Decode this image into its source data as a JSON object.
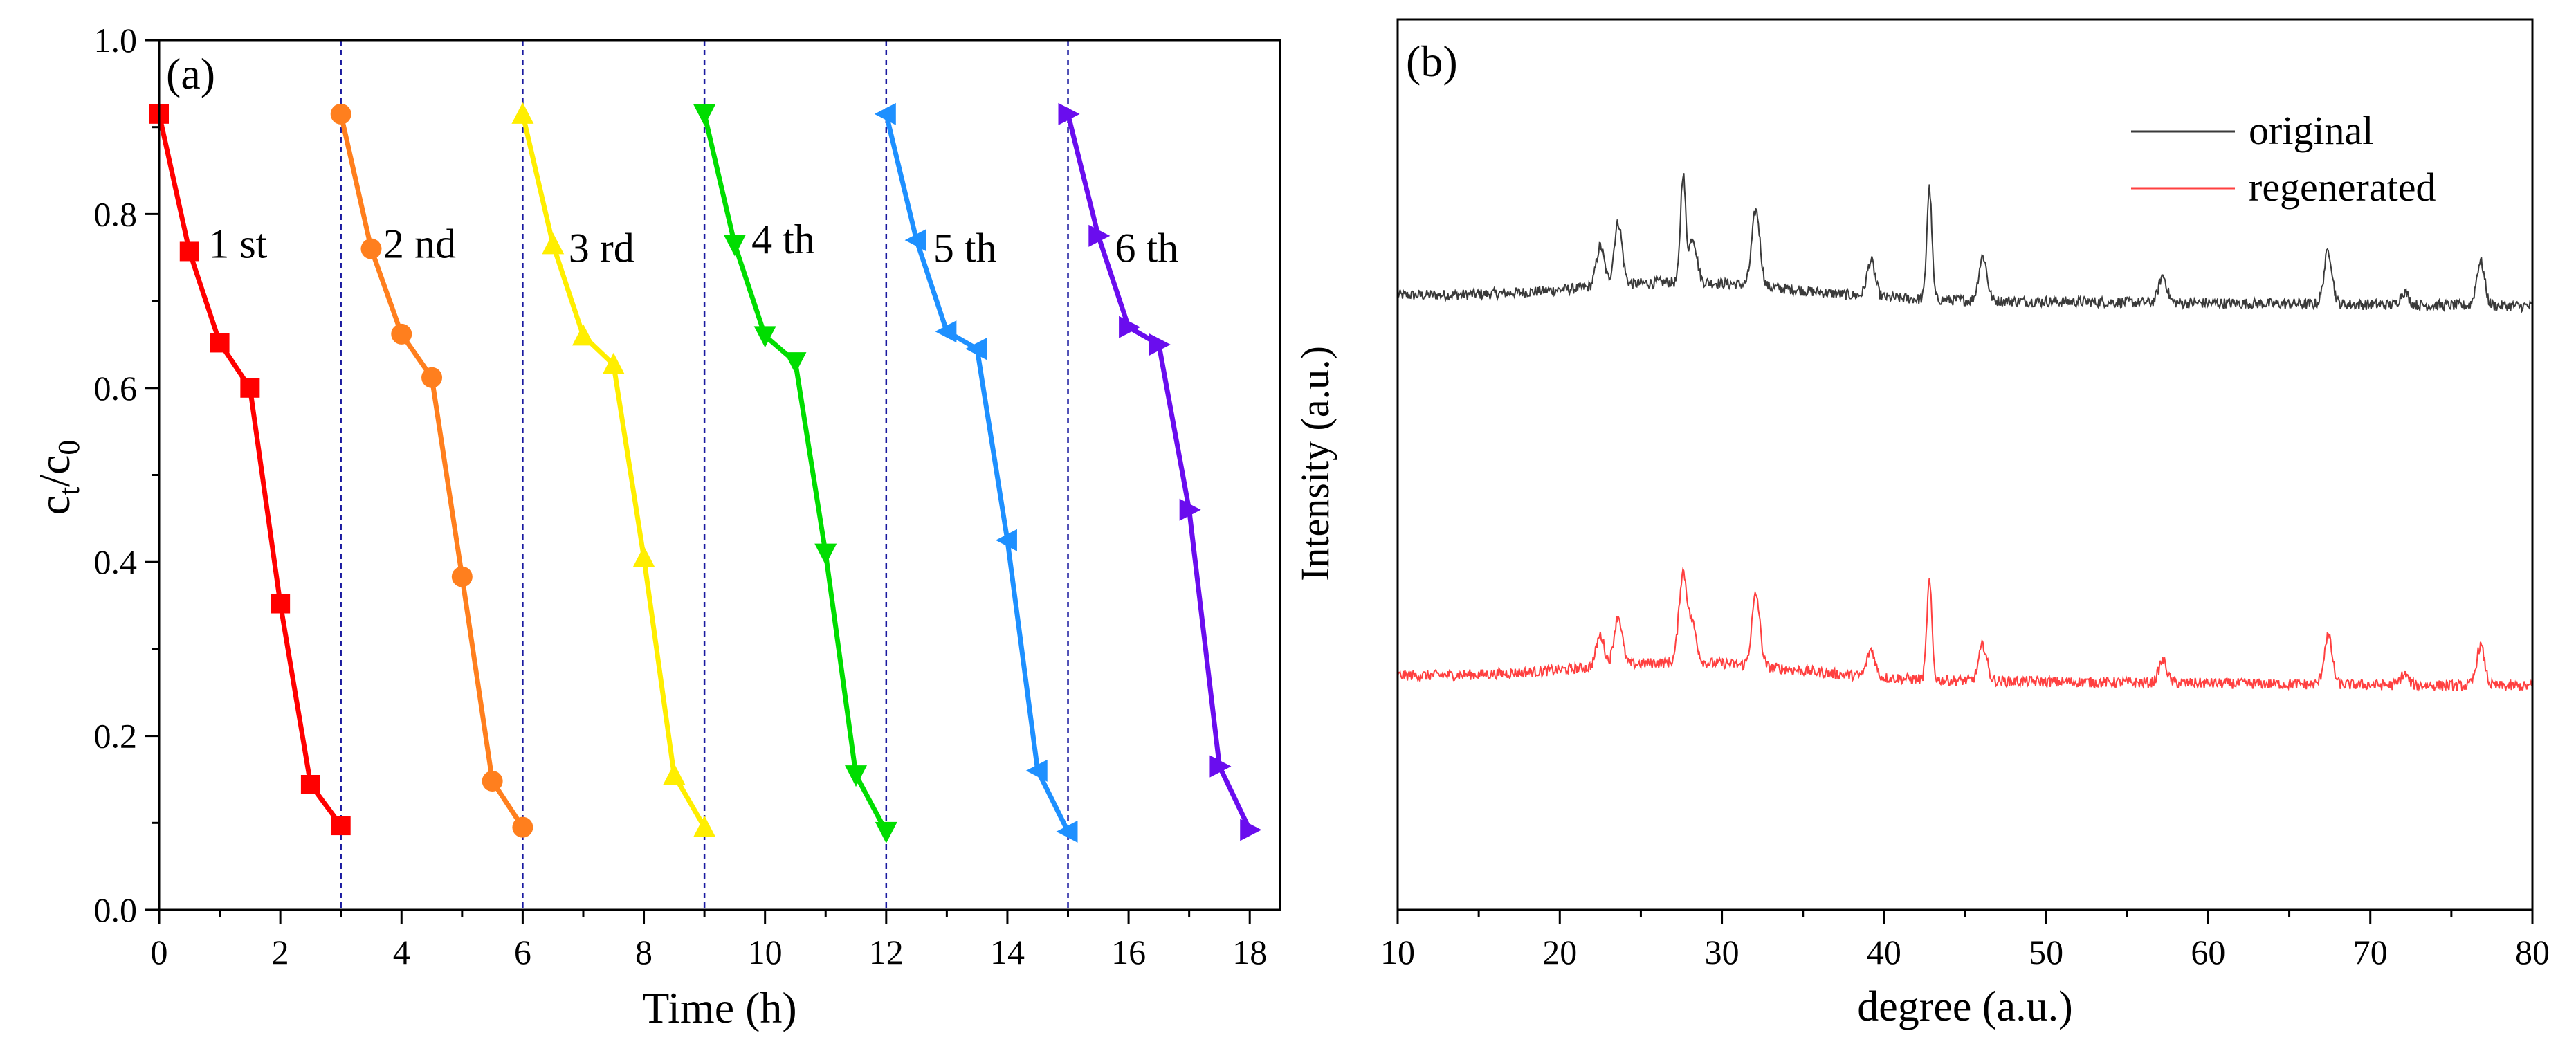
{
  "chart_data": [
    {
      "panel": "(a)",
      "type": "line",
      "xlabel": "Time (h)",
      "ylabel_main": "c",
      "ylabel_sub_t": "t",
      "ylabel_sep": "/c",
      "ylabel_sub_0": "0",
      "xlim": [
        0,
        18.5
      ],
      "ylim": [
        0,
        1.0
      ],
      "xticks": [
        "0",
        "2",
        "4",
        "6",
        "8",
        "10",
        "12",
        "14",
        "16",
        "18"
      ],
      "yticks": [
        "0.0",
        "0.2",
        "0.4",
        "0.6",
        "0.8",
        "1.0"
      ],
      "cycle_dividers": [
        3,
        6,
        9,
        12,
        15
      ],
      "series": [
        {
          "name": "1 st",
          "color": "#ff0000",
          "marker": "square",
          "x": [
            0,
            0.5,
            1,
            1.5,
            2,
            2.5,
            3
          ],
          "y": [
            0.915,
            0.757,
            0.652,
            0.6,
            0.352,
            0.144,
            0.097
          ],
          "label_pos": [
            1.3,
            0.75
          ]
        },
        {
          "name": "2 nd",
          "color": "#ff7f1e",
          "marker": "circle",
          "x": [
            3,
            3.5,
            4,
            4.5,
            5,
            5.5,
            6
          ],
          "y": [
            0.915,
            0.76,
            0.662,
            0.612,
            0.383,
            0.148,
            0.095
          ],
          "label_pos": [
            4.3,
            0.75
          ]
        },
        {
          "name": "3 rd",
          "color": "#ffee00",
          "marker": "triangle-up",
          "x": [
            6,
            6.5,
            7,
            7.5,
            8,
            8.5,
            9
          ],
          "y": [
            0.915,
            0.765,
            0.66,
            0.627,
            0.405,
            0.155,
            0.095
          ],
          "label_pos": [
            7.3,
            0.745
          ]
        },
        {
          "name": "4 th",
          "color": "#00dd00",
          "marker": "triangle-down",
          "x": [
            9,
            9.5,
            10,
            10.5,
            11,
            11.5,
            12
          ],
          "y": [
            0.915,
            0.765,
            0.66,
            0.63,
            0.41,
            0.155,
            0.09
          ],
          "label_pos": [
            10.3,
            0.755
          ]
        },
        {
          "name": "5 th",
          "color": "#1e90ff",
          "marker": "triangle-left",
          "x": [
            12,
            12.5,
            13,
            13.5,
            14,
            14.5,
            15
          ],
          "y": [
            0.915,
            0.77,
            0.665,
            0.645,
            0.425,
            0.16,
            0.09
          ],
          "label_pos": [
            13.3,
            0.745
          ]
        },
        {
          "name": "6 th",
          "color": "#6a0dee",
          "marker": "triangle-right",
          "x": [
            15,
            15.5,
            16,
            16.5,
            17,
            17.5,
            18
          ],
          "y": [
            0.915,
            0.775,
            0.67,
            0.65,
            0.46,
            0.165,
            0.092
          ],
          "label_pos": [
            16.3,
            0.745
          ]
        }
      ]
    },
    {
      "panel": "(b)",
      "type": "line",
      "xlabel": "degree (a.u.)",
      "ylabel": "Intensity (a.u.)",
      "xlim": [
        10,
        80
      ],
      "ylim": [
        0,
        1.0
      ],
      "yticks_shown": false,
      "xticks": [
        "10",
        "20",
        "30",
        "40",
        "50",
        "60",
        "70",
        "80"
      ],
      "series": [
        {
          "name": "original",
          "color": "#3a3a3a",
          "baseline": 0.69,
          "peaks": [
            [
              22.5,
              0.045
            ],
            [
              23.6,
              0.07
            ],
            [
              27.6,
              0.12
            ],
            [
              28.2,
              0.05
            ],
            [
              32.1,
              0.085
            ],
            [
              39.2,
              0.04
            ],
            [
              42.8,
              0.125
            ],
            [
              46.1,
              0.05
            ],
            [
              57.2,
              0.03
            ],
            [
              67.4,
              0.06
            ],
            [
              72.1,
              0.015
            ],
            [
              76.8,
              0.05
            ]
          ]
        },
        {
          "name": "regenerated",
          "color": "#ff4040",
          "baseline": 0.263,
          "peaks": [
            [
              22.5,
              0.035
            ],
            [
              23.6,
              0.055
            ],
            [
              27.6,
              0.1
            ],
            [
              28.2,
              0.04
            ],
            [
              32.1,
              0.08
            ],
            [
              39.2,
              0.03
            ],
            [
              42.8,
              0.11
            ],
            [
              46.1,
              0.04
            ],
            [
              57.2,
              0.025
            ],
            [
              67.4,
              0.055
            ],
            [
              72.1,
              0.012
            ],
            [
              76.8,
              0.045
            ]
          ]
        }
      ],
      "legend": {
        "position": "top-right",
        "entries": [
          "original",
          "regenerated"
        ]
      }
    }
  ]
}
